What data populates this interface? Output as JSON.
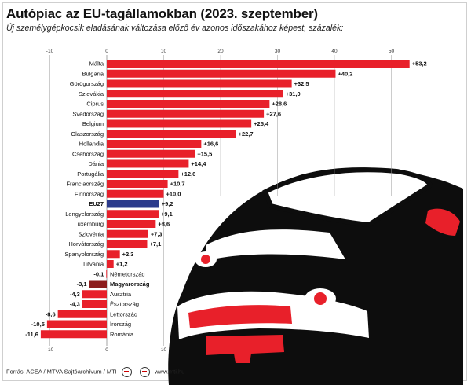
{
  "header": {
    "title": "Autópiac az EU-tagállamokban (2023. szeptember)",
    "subtitle": "Új személygépkocsik eladásának változása előző év azonos időszakához képest, százalék:"
  },
  "footer": {
    "source": "Forrás: ACEA / MTVA Sajtóarchívum / MTI",
    "site": "www.mti.hu"
  },
  "colors": {
    "bar": "#e8202a",
    "highlight": "#2b3a8c",
    "negative_highlight": "#8c1c1c",
    "grid": "#9a9a9a"
  },
  "chart_data": {
    "type": "bar",
    "orientation": "horizontal",
    "xlim": [
      -10,
      50
    ],
    "ticks_top": [
      "-10",
      "0",
      "10",
      "20",
      "30",
      "40",
      "50"
    ],
    "ticks_bottom": [
      "-10",
      "0",
      "10"
    ],
    "grid": true,
    "categories": [
      "Málta",
      "Bulgária",
      "Görögország",
      "Szlovákia",
      "Ciprus",
      "Svédország",
      "Belgium",
      "Olaszország",
      "Hollandia",
      "Csehország",
      "Dánia",
      "Portugália",
      "Franciaország",
      "Finnország",
      "EU27",
      "Lengyelország",
      "Luxemburg",
      "Szlovénia",
      "Horvátország",
      "Spanyolország",
      "Litvánia",
      "Németország",
      "Magyarország",
      "Ausztria",
      "Észtország",
      "Lettország",
      "Írország",
      "Románia"
    ],
    "values": [
      53.2,
      40.2,
      32.5,
      31.0,
      28.6,
      27.6,
      25.4,
      22.7,
      16.6,
      15.5,
      14.4,
      12.6,
      10.7,
      10.0,
      9.2,
      9.1,
      8.6,
      7.3,
      7.1,
      2.3,
      1.2,
      -0.1,
      -3.1,
      -4.3,
      -4.3,
      -8.6,
      -10.5,
      -11.6
    ],
    "value_labels": [
      "+53,2",
      "+40,2",
      "+32,5",
      "+31,0",
      "+28,6",
      "+27,6",
      "+25,4",
      "+22,7",
      "+16,6",
      "+15,5",
      "+14,4",
      "+12,6",
      "+10,7",
      "+10,0",
      "+9,2",
      "+9,1",
      "+8,6",
      "+7,3",
      "+7,1",
      "+2,3",
      "+1,2",
      "-0,1",
      "-3,1",
      "-4,3",
      "-4,3",
      "-8,6",
      "-10,5",
      "-11,6"
    ],
    "highlight": [
      "EU27",
      "Magyarország"
    ]
  }
}
